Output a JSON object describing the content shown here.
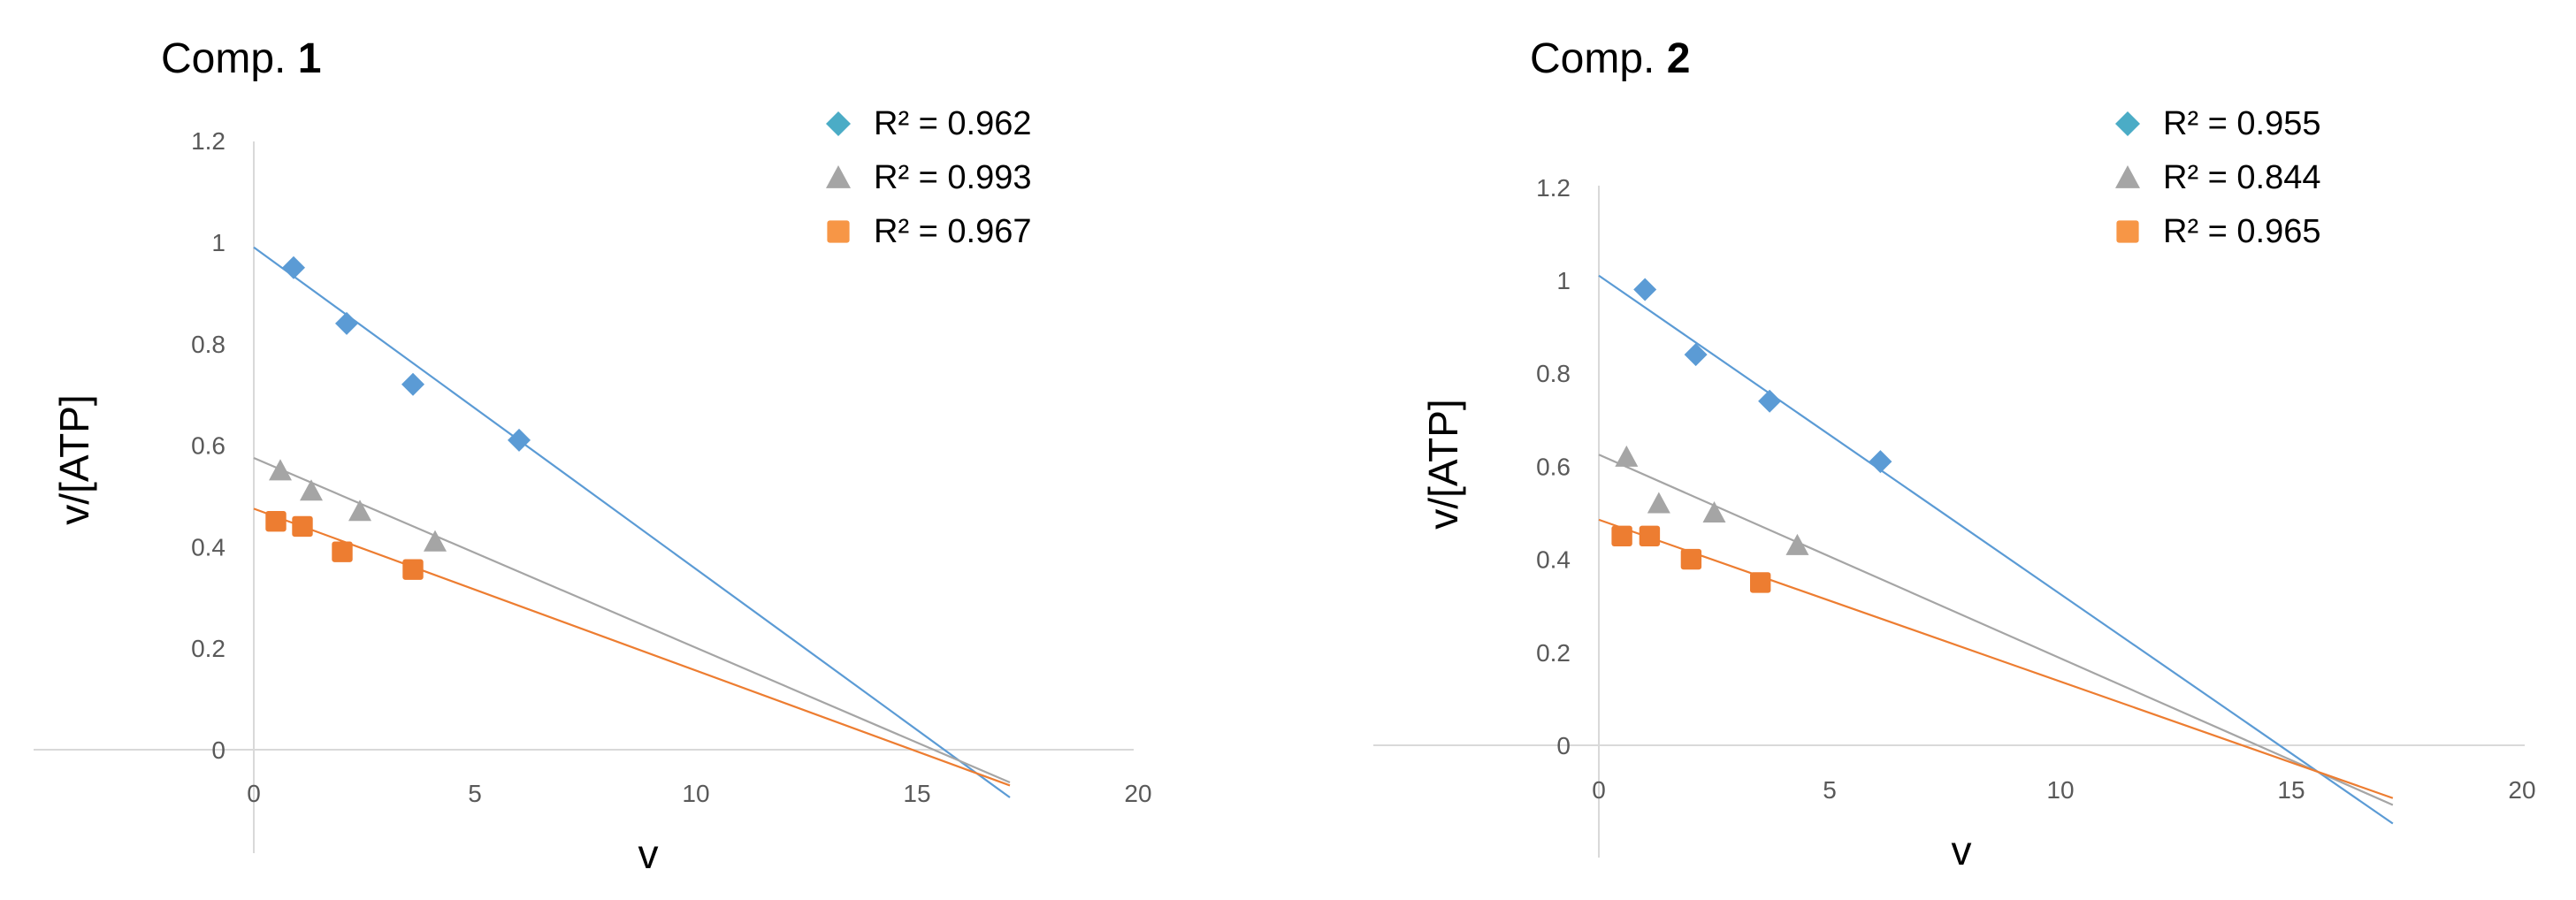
{
  "chart_data": [
    {
      "type": "scatter",
      "title_prefix": "Comp.",
      "title_number": "1",
      "xlabel": "v",
      "ylabel": "v/[ATP]",
      "xlim": [
        -5,
        20
      ],
      "ylim": [
        -0.2,
        1.2
      ],
      "x_ticks": [
        0,
        5,
        10,
        15,
        20
      ],
      "x_tick_labels": [
        "0",
        "5",
        "10",
        "15",
        "20"
      ],
      "y_ticks": [
        0,
        0.2,
        0.4,
        0.6,
        0.8,
        1,
        1.2
      ],
      "y_tick_labels": [
        "0",
        "0.2",
        "0.4",
        "0.6",
        "0.8",
        "1",
        "1.2"
      ],
      "trendline_x_end": 17.1,
      "series": [
        {
          "name": "blue",
          "marker": "diamond",
          "color": "#5B9BD5",
          "legend_color": "#4BACC6",
          "legend_label": "R² = 0.962",
          "x": [
            0.9,
            2.1,
            3.6,
            6.0
          ],
          "y": [
            0.95,
            0.84,
            0.72,
            0.61
          ],
          "trend": {
            "slope": -0.0634,
            "intercept": 0.99
          }
        },
        {
          "name": "gray",
          "marker": "triangle",
          "color": "#A5A5A5",
          "legend_color": "#A5A5A5",
          "legend_label": "R² = 0.993",
          "x": [
            0.6,
            1.3,
            2.4,
            4.1
          ],
          "y": [
            0.55,
            0.51,
            0.47,
            0.41
          ],
          "trend": {
            "slope": -0.0374,
            "intercept": 0.575
          }
        },
        {
          "name": "orange",
          "marker": "square",
          "color": "#ED7D31",
          "legend_color": "#F79646",
          "legend_label": "R² = 0.967",
          "x": [
            0.5,
            1.1,
            2.0,
            3.6
          ],
          "y": [
            0.45,
            0.44,
            0.39,
            0.355
          ],
          "trend": {
            "slope": -0.0319,
            "intercept": 0.475
          }
        }
      ]
    },
    {
      "type": "scatter",
      "title_prefix": "Comp.",
      "title_number": "2",
      "xlabel": "v",
      "ylabel": "v/[ATP]",
      "xlim": [
        -5,
        20
      ],
      "ylim": [
        -0.2,
        1.2
      ],
      "x_ticks": [
        0,
        5,
        10,
        15,
        20
      ],
      "x_tick_labels": [
        "0",
        "5",
        "10",
        "15",
        "20"
      ],
      "y_ticks": [
        0,
        0.2,
        0.4,
        0.6,
        0.8,
        1,
        1.2
      ],
      "y_tick_labels": [
        "0",
        "0.2",
        "0.4",
        "0.6",
        "0.8",
        "1",
        "1.2"
      ],
      "trendline_x_end": 17.2,
      "series": [
        {
          "name": "blue",
          "marker": "diamond",
          "color": "#5B9BD5",
          "legend_color": "#4BACC6",
          "legend_label": "R² = 0.955",
          "x": [
            1.0,
            2.1,
            3.7,
            6.1
          ],
          "y": [
            0.98,
            0.84,
            0.74,
            0.61
          ],
          "trend": {
            "slope": -0.0685,
            "intercept": 1.01
          }
        },
        {
          "name": "gray",
          "marker": "triangle",
          "color": "#A5A5A5",
          "legend_color": "#A5A5A5",
          "legend_label": "R² = 0.844",
          "x": [
            0.6,
            1.3,
            2.5,
            4.3
          ],
          "y": [
            0.62,
            0.52,
            0.5,
            0.43
          ],
          "trend": {
            "slope": -0.0438,
            "intercept": 0.625
          }
        },
        {
          "name": "orange",
          "marker": "square",
          "color": "#ED7D31",
          "legend_color": "#F79646",
          "legend_label": "R² = 0.965",
          "x": [
            0.5,
            1.1,
            2.0,
            3.5
          ],
          "y": [
            0.45,
            0.45,
            0.4,
            0.35
          ],
          "trend": {
            "slope": -0.0348,
            "intercept": 0.485
          }
        }
      ]
    }
  ]
}
